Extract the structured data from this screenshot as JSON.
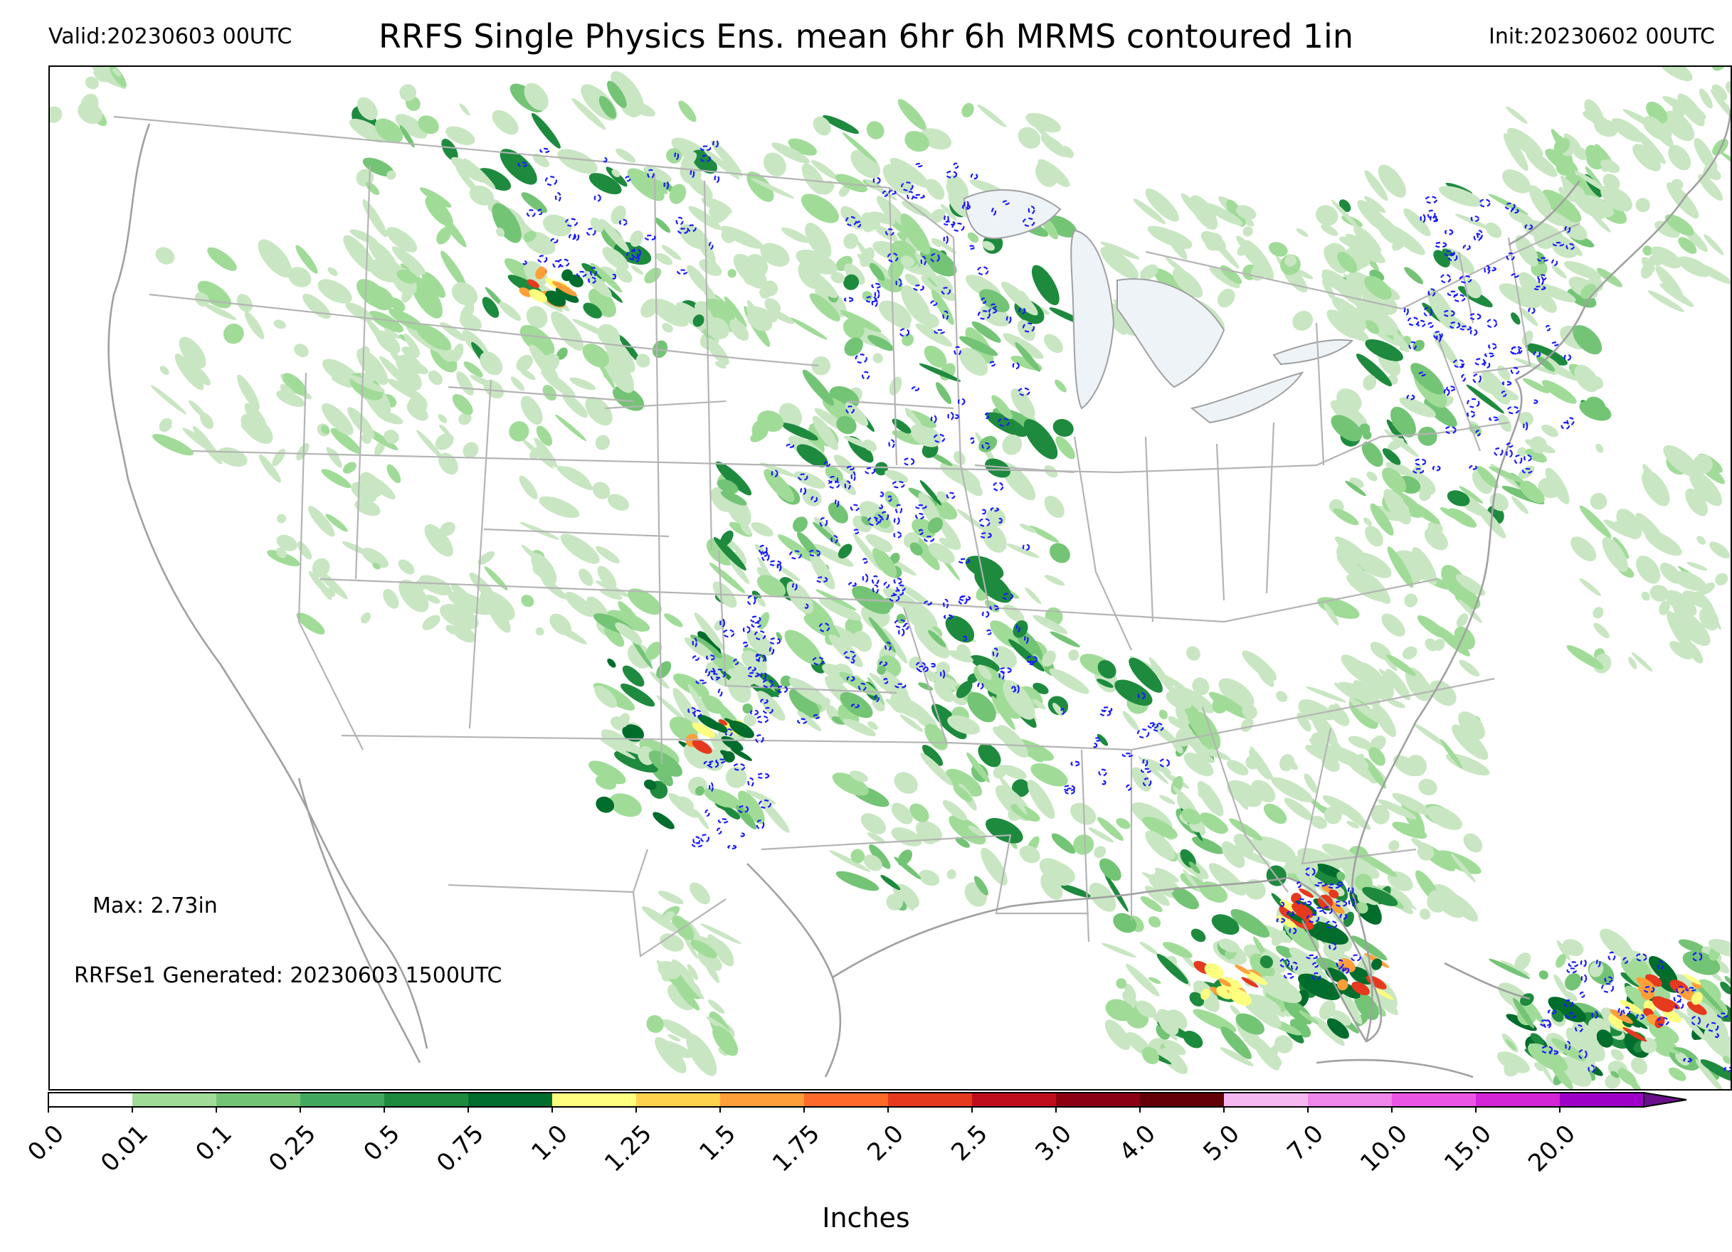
{
  "header": {
    "valid": "Valid:20230603 00UTC",
    "title": "RRFS Single Physics Ens. mean 6hr 6h MRMS contoured 1in",
    "init": "Init:20230602 00UTC"
  },
  "annotations": {
    "max": "Max: 2.73in",
    "generated": "RRFSe1 Generated: 20230603 1500UTC"
  },
  "colorbar": {
    "label": "Inches",
    "ticks": [
      "0.0",
      "0.01",
      "0.1",
      "0.25",
      "0.5",
      "0.75",
      "1.0",
      "1.25",
      "1.5",
      "1.75",
      "2.0",
      "2.5",
      "3.0",
      "4.0",
      "5.0",
      "7.0",
      "10.0",
      "15.0",
      "20.0"
    ],
    "colors": [
      "#ffffff",
      "#c8e6c2",
      "#a0dc98",
      "#74c476",
      "#41a85f",
      "#1e8a3e",
      "#006d2c",
      "#ffff7f",
      "#ffd24d",
      "#ff9f3a",
      "#ff6a2b",
      "#e53a1e",
      "#c00d1e",
      "#8b0012",
      "#630005",
      "#f5b8f0",
      "#ef87ea",
      "#ea55e4",
      "#d324d6",
      "#9e00c8"
    ],
    "extend_color": "#6a0f8c"
  },
  "map": {
    "region": "CONUS",
    "mrms_contour_value": "1in",
    "colors": {
      "light_green": "#c8e6c2",
      "mid_green": "#a0dc98",
      "green": "#74c476",
      "dark_green": "#1e8a3e",
      "deep_green": "#006d2c",
      "yellow": "#ffff7f",
      "orange": "#ff9f3a",
      "red": "#e53a1e",
      "lake": "#eef3f8",
      "boundary": "#b4b4b4",
      "coast": "#a0a0a0",
      "mrms_contour": "#1a1aff"
    }
  }
}
